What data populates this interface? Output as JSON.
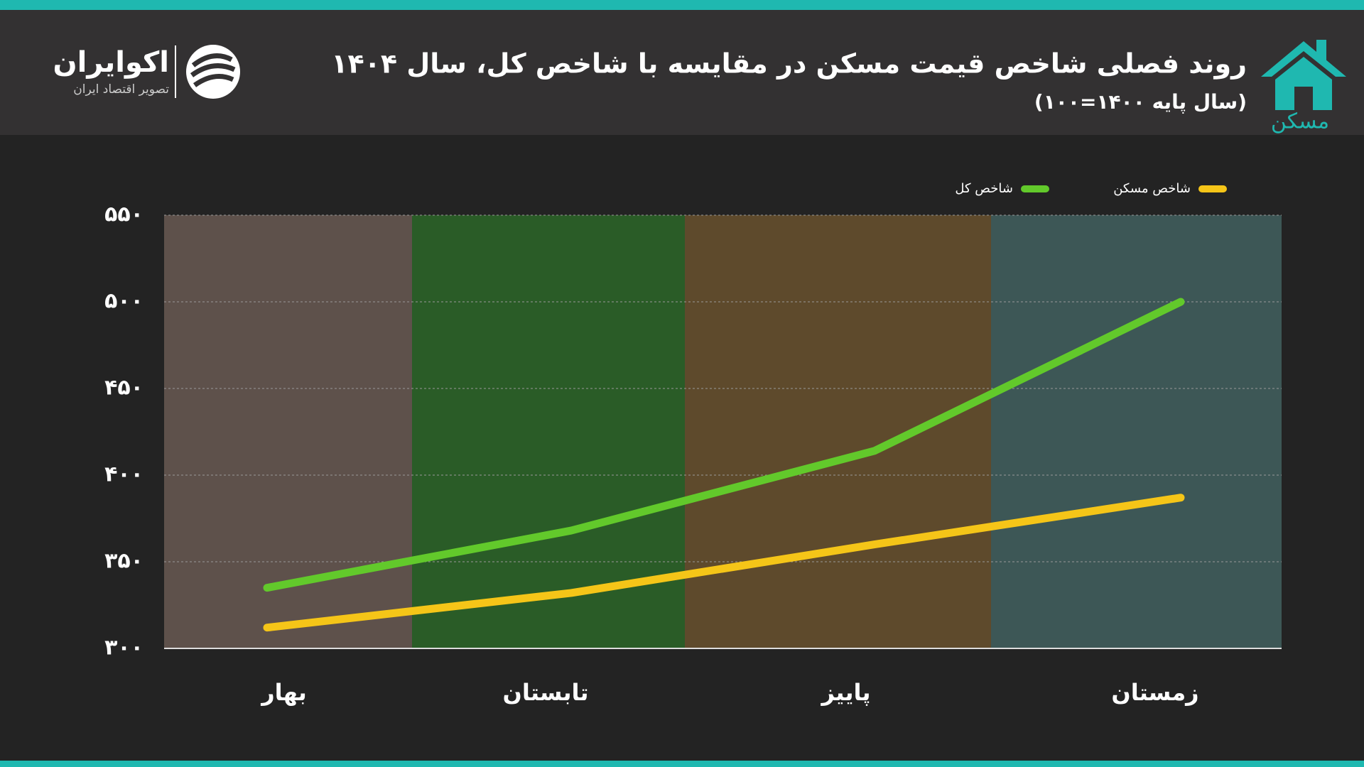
{
  "header": {
    "brand": "اکوایران",
    "slogan": "تصویر اقتصاد ایران",
    "section": "مسکن"
  },
  "chart_data": {
    "type": "line",
    "title": "روند فصلی شاخص قیمت مسکن در مقایسه با شاخص کل، سال ۱۴۰۴",
    "subtitle": "(سال پایه ۱۴۰۰=۱۰۰)",
    "categories": [
      "بهار",
      "تابستان",
      "پاییز",
      "زمستان"
    ],
    "category_colors": [
      "#5e514b",
      "#2a5c27",
      "#5e4a2c",
      "#3d5756"
    ],
    "series": [
      {
        "name": "شاخص مسکن",
        "color": "#f5c518",
        "values": [
          312,
          332,
          360,
          387
        ]
      },
      {
        "name": "شاخص کل",
        "color": "#62c92b",
        "values": [
          335,
          368,
          414,
          500
        ]
      }
    ],
    "ylim": [
      300,
      550
    ],
    "yticks": [
      {
        "value": 300,
        "label": "۳۰۰"
      },
      {
        "value": 350,
        "label": "۳۵۰"
      },
      {
        "value": 400,
        "label": "۴۰۰"
      },
      {
        "value": 450,
        "label": "۴۵۰"
      },
      {
        "value": 500,
        "label": "۵۰۰"
      },
      {
        "value": 550,
        "label": "۵۵۰"
      }
    ],
    "grid": true,
    "legend": "top-right"
  }
}
